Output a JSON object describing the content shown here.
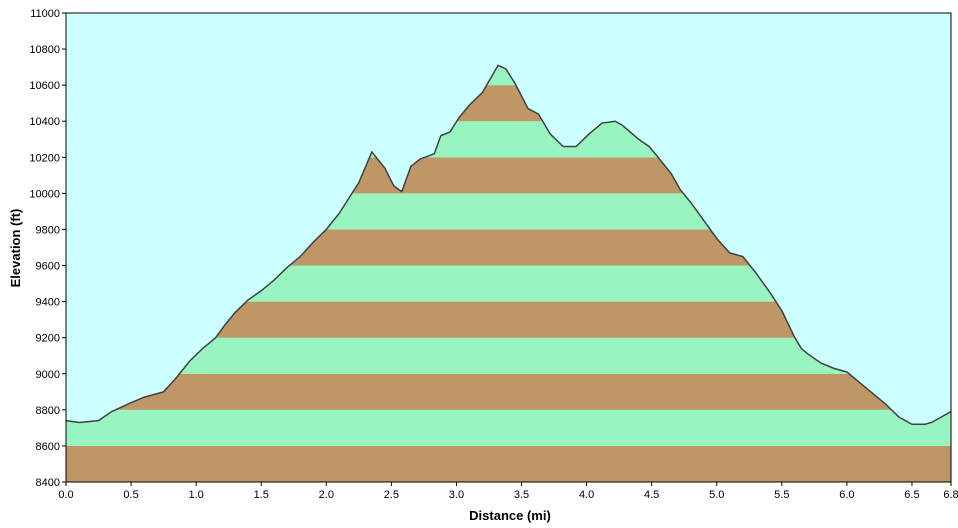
{
  "chart_data": {
    "type": "area",
    "title": "",
    "xlabel": "Distance   (mi)",
    "ylabel": "Elevation  (ft)",
    "xlim": [
      0.0,
      6.8
    ],
    "ylim": [
      8400,
      11000
    ],
    "x_ticks": [
      0.0,
      0.5,
      1.0,
      1.5,
      2.0,
      2.5,
      3.0,
      3.5,
      4.0,
      4.5,
      5.0,
      5.5,
      6.0,
      6.5,
      6.8
    ],
    "x_tick_labels": [
      "0.0",
      "0.5",
      "1.0",
      "1.5",
      "2.0",
      "2.5",
      "3.0",
      "3.5",
      "4.0",
      "4.5",
      "5.0",
      "5.5",
      "6.0",
      "6.5",
      "6.8"
    ],
    "y_ticks": [
      8400,
      8600,
      8800,
      9000,
      9200,
      9400,
      9600,
      9800,
      10000,
      10200,
      10400,
      10600,
      10800,
      11000
    ],
    "y_tick_labels": [
      "8400",
      "8600",
      "8800",
      "9000",
      "9200",
      "9400",
      "9600",
      "9800",
      "10000",
      "10200",
      "10400",
      "10600",
      "10800",
      "11000"
    ],
    "band_interval": 200,
    "colors": {
      "sky": "#ccffff",
      "band_brown": "#bf9666",
      "band_green": "#99f5bf",
      "profile_line": "#404040",
      "frame": "#000000"
    },
    "grid": false,
    "legend": "none",
    "x": [
      0.0,
      0.1,
      0.25,
      0.35,
      0.5,
      0.6,
      0.75,
      0.85,
      0.95,
      1.05,
      1.15,
      1.22,
      1.3,
      1.4,
      1.5,
      1.6,
      1.7,
      1.8,
      1.9,
      2.0,
      2.1,
      2.25,
      2.35,
      2.45,
      2.52,
      2.58,
      2.65,
      2.72,
      2.83,
      2.88,
      2.95,
      3.02,
      3.1,
      3.2,
      3.28,
      3.32,
      3.38,
      3.45,
      3.55,
      3.63,
      3.72,
      3.82,
      3.92,
      4.02,
      4.12,
      4.22,
      4.27,
      4.32,
      4.4,
      4.48,
      4.55,
      4.65,
      4.72,
      4.8,
      4.9,
      5.0,
      5.1,
      5.2,
      5.3,
      5.4,
      5.5,
      5.6,
      5.65,
      5.7,
      5.8,
      5.9,
      6.0,
      6.05,
      6.1,
      6.2,
      6.3,
      6.4,
      6.5,
      6.6,
      6.65,
      6.7,
      6.8
    ],
    "y": [
      8740,
      8730,
      8740,
      8790,
      8840,
      8870,
      8900,
      8980,
      9070,
      9140,
      9200,
      9270,
      9340,
      9410,
      9460,
      9520,
      9590,
      9650,
      9730,
      9800,
      9890,
      10060,
      10230,
      10140,
      10040,
      10010,
      10150,
      10190,
      10220,
      10320,
      10340,
      10420,
      10490,
      10560,
      10660,
      10710,
      10690,
      10610,
      10470,
      10440,
      10330,
      10260,
      10260,
      10330,
      10390,
      10400,
      10380,
      10350,
      10300,
      10260,
      10200,
      10110,
      10020,
      9950,
      9850,
      9750,
      9670,
      9650,
      9560,
      9460,
      9350,
      9200,
      9140,
      9110,
      9060,
      9030,
      9010,
      8980,
      8950,
      8890,
      8830,
      8760,
      8720,
      8720,
      8730,
      8750,
      8790
    ]
  }
}
